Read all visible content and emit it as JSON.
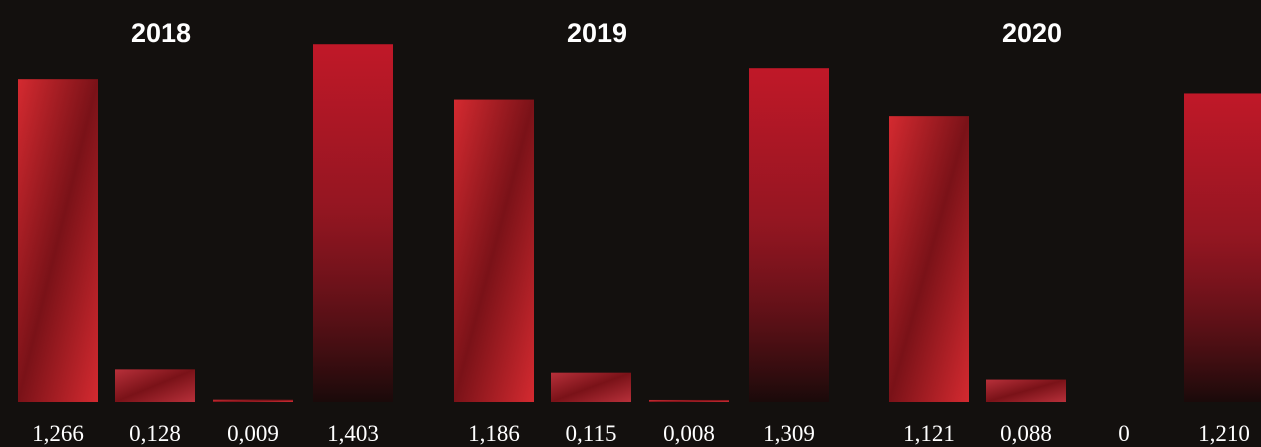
{
  "chart_data": [
    {
      "type": "bar",
      "title": "2018",
      "values": [
        1.266,
        0.128,
        0.009,
        1.403
      ],
      "value_labels": [
        "1,266",
        "0,128",
        "0,009",
        "1,403"
      ],
      "colors": [
        "#d42a30",
        "#b8303a",
        "#d83038",
        "#c01828"
      ]
    },
    {
      "type": "bar",
      "title": "2019",
      "values": [
        1.186,
        0.115,
        0.008,
        1.309
      ],
      "value_labels": [
        "1,186",
        "0,115",
        "0,008",
        "1,309"
      ],
      "colors": [
        "#d42a30",
        "#b8303a",
        "#d83038",
        "#c01828"
      ]
    },
    {
      "type": "bar",
      "title": "2020",
      "values": [
        1.121,
        0.088,
        0,
        1.21
      ],
      "value_labels": [
        "1,121",
        "0,088",
        "0",
        "1,210"
      ],
      "colors": [
        "#d42a30",
        "#b8303a",
        "#d83038",
        "#c01828"
      ]
    }
  ]
}
